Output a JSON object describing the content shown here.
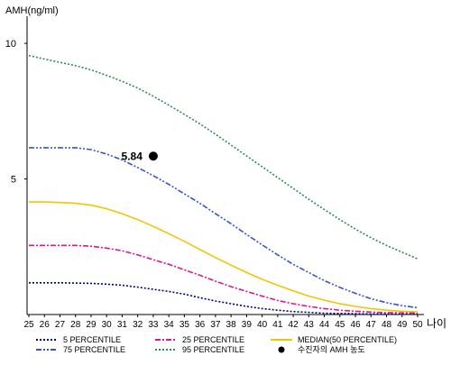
{
  "chart_data": {
    "type": "line",
    "title": "",
    "ylabel": "AMH(ng/ml)",
    "xlabel": "나이",
    "ylim": [
      0,
      11
    ],
    "xlim": [
      25,
      50
    ],
    "x_ticks": [
      25,
      26,
      27,
      28,
      29,
      30,
      31,
      32,
      33,
      34,
      35,
      36,
      37,
      38,
      39,
      40,
      41,
      42,
      43,
      44,
      45,
      46,
      47,
      48,
      49,
      50
    ],
    "y_ticks": [
      5,
      10
    ],
    "grid": false,
    "legend_position": "bottom",
    "x": [
      25,
      26,
      27,
      28,
      29,
      30,
      31,
      32,
      33,
      34,
      35,
      36,
      37,
      38,
      39,
      40,
      41,
      42,
      43,
      44,
      45,
      46,
      47,
      48,
      49,
      50
    ],
    "series": [
      {
        "key": "p5",
        "name": "5 PERCENTILE",
        "color": "#00008b",
        "dash": "dotted",
        "values": [
          1.17,
          1.17,
          1.17,
          1.16,
          1.15,
          1.12,
          1.08,
          1.01,
          0.93,
          0.85,
          0.75,
          0.62,
          0.5,
          0.4,
          0.3,
          0.22,
          0.16,
          0.11,
          0.08,
          0.05,
          0.04,
          0.03,
          0.02,
          0.02,
          0.01,
          0.01
        ]
      },
      {
        "key": "p25",
        "name": "25 PERCENTILE",
        "color": "#e0168c",
        "dash": "dashdot",
        "values": [
          2.55,
          2.55,
          2.55,
          2.55,
          2.52,
          2.45,
          2.35,
          2.2,
          2.02,
          1.85,
          1.65,
          1.45,
          1.23,
          1.03,
          0.85,
          0.68,
          0.52,
          0.4,
          0.3,
          0.22,
          0.16,
          0.12,
          0.09,
          0.07,
          0.06,
          0.05
        ]
      },
      {
        "key": "median",
        "name": "MEDIAN(50 PERCENTILE)",
        "color": "#f2c500",
        "dash": "solid",
        "values": [
          4.15,
          4.15,
          4.13,
          4.1,
          4.03,
          3.9,
          3.72,
          3.5,
          3.25,
          2.98,
          2.7,
          2.4,
          2.1,
          1.82,
          1.55,
          1.3,
          1.08,
          0.87,
          0.68,
          0.53,
          0.4,
          0.3,
          0.22,
          0.16,
          0.12,
          0.1
        ]
      },
      {
        "key": "p75",
        "name": "75 PERCENTILE",
        "color": "#3355cc",
        "dash": "dashdotdot",
        "values": [
          6.15,
          6.15,
          6.15,
          6.15,
          6.08,
          5.92,
          5.7,
          5.42,
          5.12,
          4.8,
          4.45,
          4.1,
          3.72,
          3.35,
          2.95,
          2.57,
          2.2,
          1.85,
          1.55,
          1.25,
          1.0,
          0.78,
          0.58,
          0.44,
          0.33,
          0.25
        ]
      },
      {
        "key": "p95",
        "name": "95 PERCENTILE",
        "color": "#2e8b57",
        "dash": "dotted",
        "values": [
          9.55,
          9.42,
          9.3,
          9.18,
          9.02,
          8.82,
          8.6,
          8.35,
          8.05,
          7.72,
          7.38,
          7.03,
          6.65,
          6.25,
          5.85,
          5.45,
          5.05,
          4.65,
          4.25,
          3.87,
          3.5,
          3.15,
          2.83,
          2.55,
          2.3,
          2.05
        ]
      }
    ],
    "marker": {
      "name": "수진자의 AMH 농도",
      "x": 33,
      "y": 5.84,
      "label": "5.84",
      "color": "#000000"
    }
  }
}
